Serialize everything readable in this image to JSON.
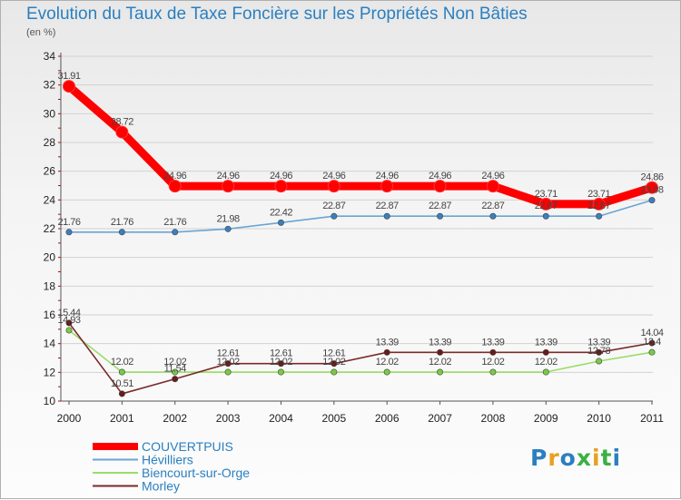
{
  "title": "Evolution du Taux de Taxe Foncière sur les Propriétés Non Bâties",
  "unit_label": "(en %)",
  "logo": {
    "text": "Proxiti",
    "colors": [
      "#2a7fc0",
      "#e8a020",
      "#2a7fc0",
      "#3cb043",
      "#e8a020",
      "#3cb043",
      "#2a7fc0"
    ]
  },
  "chart_data": {
    "type": "line",
    "title": "Evolution du Taux de Taxe Foncière sur les Propriétés Non Bâties",
    "ylabel": "(en %)",
    "xlabel": "",
    "ylim": [
      10,
      34
    ],
    "yticks": [
      10,
      12,
      14,
      16,
      18,
      20,
      22,
      24,
      26,
      28,
      30,
      32,
      34
    ],
    "grid": true,
    "legend_position": "bottom-left",
    "categories": [
      "2000",
      "2001",
      "2002",
      "2003",
      "2004",
      "2005",
      "2006",
      "2007",
      "2008",
      "2009",
      "2010",
      "2011"
    ],
    "series": [
      {
        "name": "COUVERTPUIS",
        "color": "#ff0000",
        "marker": "#ff0000",
        "emphasis": true,
        "values": [
          31.91,
          28.72,
          24.96,
          24.96,
          24.96,
          24.96,
          24.96,
          24.96,
          24.96,
          23.71,
          23.71,
          24.86
        ],
        "labels": [
          "31.91",
          "28.72",
          "24.96",
          "24.96",
          "24.96",
          "24.96",
          "24.96",
          "24.96",
          "24.96",
          "23.71",
          "23.71",
          "24.86"
        ]
      },
      {
        "name": "Hévilliers",
        "color": "#6aa4d4",
        "marker": "#3a7fc0",
        "values": [
          21.76,
          21.76,
          21.76,
          21.98,
          22.42,
          22.87,
          22.87,
          22.87,
          22.87,
          22.87,
          22.87,
          23.98
        ],
        "labels": [
          "21.76",
          "21.76",
          "21.76",
          "21.98",
          "22.42",
          "22.87",
          "22.87",
          "22.87",
          "22.87",
          "22.87",
          "22.87",
          "23.98"
        ]
      },
      {
        "name": "Biencourt-sur-Orge",
        "color": "#99dd66",
        "marker": "#77cc44",
        "values": [
          14.93,
          12.02,
          12.02,
          12.02,
          12.02,
          12.02,
          12.02,
          12.02,
          12.02,
          12.02,
          12.78,
          13.4
        ],
        "labels": [
          "14.93",
          "12.02",
          "12.02",
          "12.02",
          "12.02",
          "12.02",
          "12.02",
          "12.02",
          "12.02",
          "12.02",
          "12.78",
          "13.4"
        ]
      },
      {
        "name": "Morley",
        "color": "#7a2a2a",
        "marker": "#6a1a1a",
        "values": [
          15.44,
          10.51,
          11.54,
          12.61,
          12.61,
          12.61,
          13.39,
          13.39,
          13.39,
          13.39,
          13.39,
          14.04
        ],
        "labels": [
          "15.44",
          "10.51",
          "11.54",
          "12.61",
          "12.61",
          "12.61",
          "13.39",
          "13.39",
          "13.39",
          "13.39",
          "13.39",
          "14.04"
        ]
      }
    ]
  }
}
